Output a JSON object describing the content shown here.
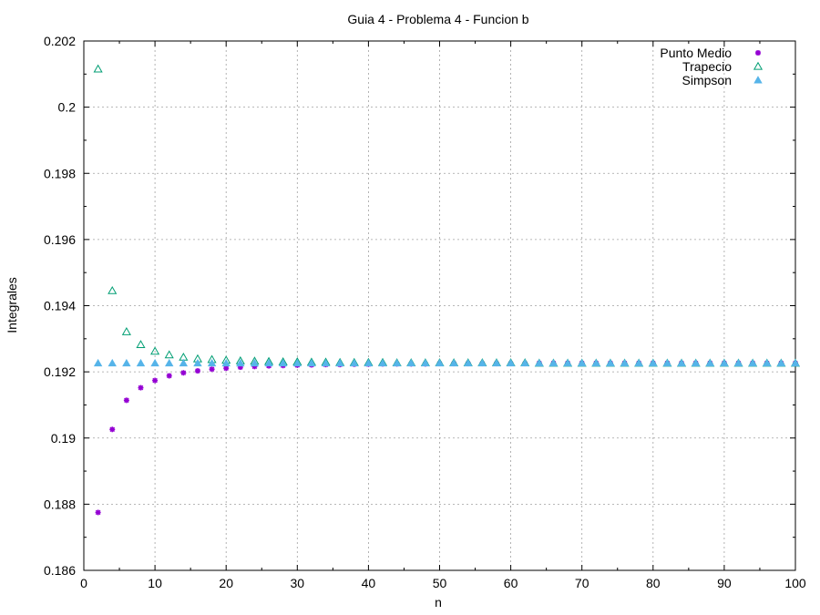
{
  "chart_data": {
    "type": "scatter",
    "title": "Guia 4 - Problema 4 - Funcion b",
    "xlabel": "n",
    "ylabel": "Integrales",
    "xlim": [
      0,
      100
    ],
    "ylim": [
      0.186,
      0.202
    ],
    "x_ticks": [
      0,
      10,
      20,
      30,
      40,
      50,
      60,
      70,
      80,
      90,
      100
    ],
    "y_ticks": [
      0.186,
      0.188,
      0.19,
      0.192,
      0.194,
      0.196,
      0.198,
      0.2,
      0.202
    ],
    "y_tick_labels": [
      "0.186",
      "0.188",
      "0.19",
      "0.192",
      "0.194",
      "0.196",
      "0.198",
      "0.2",
      "0.202"
    ],
    "grid": true,
    "legend_position": "top-right",
    "x": [
      2,
      4,
      6,
      8,
      10,
      12,
      14,
      16,
      18,
      20,
      22,
      24,
      26,
      28,
      30,
      32,
      34,
      36,
      38,
      40,
      42,
      44,
      46,
      48,
      50,
      52,
      54,
      56,
      58,
      60,
      62,
      64,
      66,
      68,
      70,
      72,
      74,
      76,
      78,
      80,
      82,
      84,
      86,
      88,
      90,
      92,
      94,
      96,
      98,
      100
    ],
    "series": [
      {
        "name": "Punto Medio",
        "marker": "star",
        "color": "#9400d3",
        "values": [
          0.18775,
          0.19026,
          0.19114,
          0.19152,
          0.19174,
          0.19188,
          0.19197,
          0.19203,
          0.19208,
          0.19211,
          0.19214,
          0.19216,
          0.19218,
          0.19219,
          0.1922,
          0.19221,
          0.19222,
          0.19222,
          0.19223,
          0.19223,
          0.19224,
          0.19224,
          0.19224,
          0.19224,
          0.19225,
          0.19225,
          0.19225,
          0.19225,
          0.19225,
          0.19225,
          0.19225,
          0.19226,
          0.19226,
          0.19226,
          0.19226,
          0.19226,
          0.19226,
          0.19226,
          0.19226,
          0.19226,
          0.19226,
          0.19226,
          0.19226,
          0.19226,
          0.19226,
          0.19226,
          0.19226,
          0.19226,
          0.19226,
          0.19226
        ]
      },
      {
        "name": "Trapecio",
        "marker": "triangle-open",
        "color": "#009e73",
        "values": [
          0.20115,
          0.19445,
          0.19321,
          0.19282,
          0.19262,
          0.19251,
          0.19244,
          0.19239,
          0.19237,
          0.19235,
          0.19233,
          0.19232,
          0.19231,
          0.1923,
          0.1923,
          0.19229,
          0.19229,
          0.19228,
          0.19228,
          0.19228,
          0.19228,
          0.19227,
          0.19227,
          0.19227,
          0.19227,
          0.19227,
          0.19227,
          0.19227,
          0.19227,
          0.19227,
          0.19227,
          0.19226,
          0.19226,
          0.19226,
          0.19226,
          0.19226,
          0.19226,
          0.19226,
          0.19226,
          0.19226,
          0.19226,
          0.19226,
          0.19226,
          0.19226,
          0.19226,
          0.19226,
          0.19226,
          0.19226,
          0.19226,
          0.19226
        ]
      },
      {
        "name": "Simpson",
        "marker": "triangle-filled",
        "color": "#56b4e9",
        "values": [
          0.19226,
          0.19226,
          0.19226,
          0.19226,
          0.19226,
          0.19226,
          0.19226,
          0.19226,
          0.19226,
          0.19226,
          0.19226,
          0.19226,
          0.19226,
          0.19226,
          0.19226,
          0.19226,
          0.19226,
          0.19226,
          0.19226,
          0.19226,
          0.19226,
          0.19226,
          0.19226,
          0.19226,
          0.19226,
          0.19226,
          0.19226,
          0.19226,
          0.19226,
          0.19226,
          0.19226,
          0.19226,
          0.19226,
          0.19226,
          0.19226,
          0.19226,
          0.19226,
          0.19226,
          0.19226,
          0.19226,
          0.19226,
          0.19226,
          0.19226,
          0.19226,
          0.19226,
          0.19226,
          0.19226,
          0.19226,
          0.19226,
          0.19226
        ]
      }
    ]
  }
}
